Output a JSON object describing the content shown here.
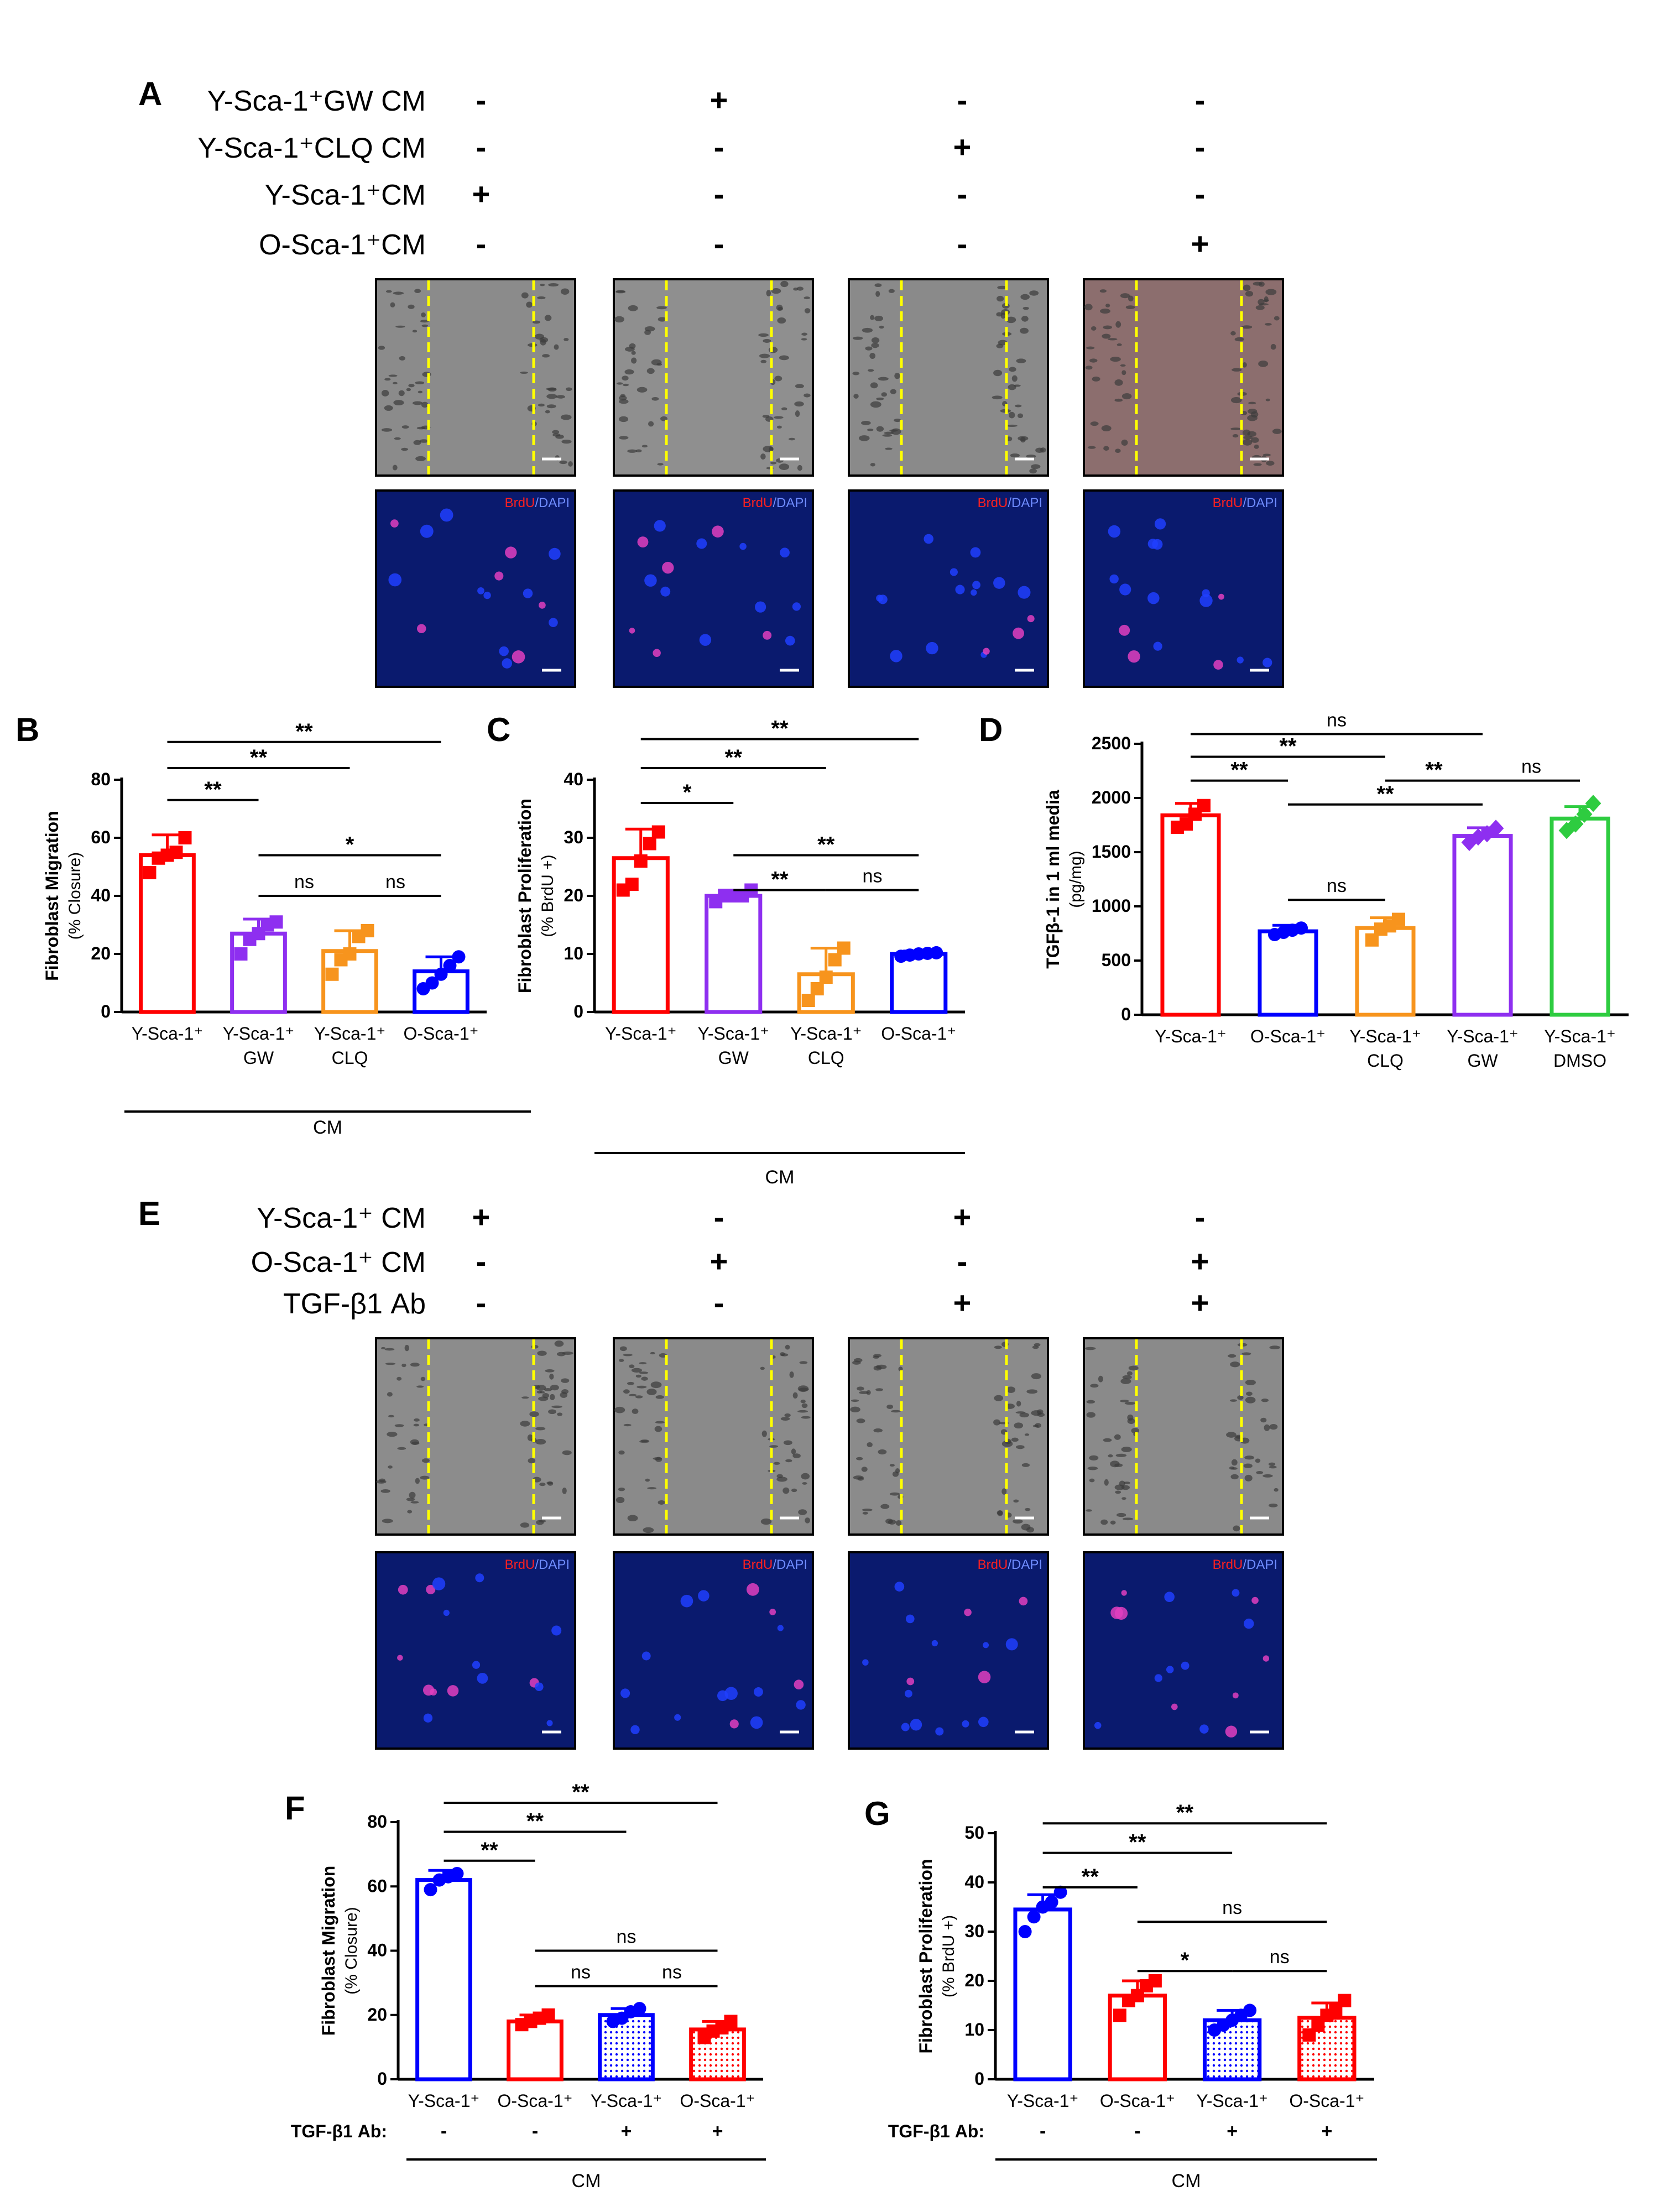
{
  "panel_a": {
    "letter": "A",
    "rows": [
      {
        "label": "Y-Sca-1⁺GW CM",
        "signs": [
          "-",
          "+",
          "-",
          "-"
        ]
      },
      {
        "label": "Y-Sca-1⁺CLQ CM",
        "signs": [
          "-",
          "-",
          "+",
          "-"
        ]
      },
      {
        "label": "Y-Sca-1⁺CM",
        "signs": [
          "+",
          "-",
          "-",
          "-"
        ]
      },
      {
        "label": "O-Sca-1⁺CM",
        "signs": [
          "-",
          "-",
          "-",
          "+"
        ]
      }
    ],
    "brdu_label": "BrdU",
    "dapi_label": "/DAPI",
    "micro_fill": [
      "#8b8b8b",
      "#8f8f8f",
      "#8a8a8a",
      "#8c6e6e"
    ]
  },
  "panel_e": {
    "letter": "E",
    "rows": [
      {
        "label": "Y-Sca-1⁺ CM",
        "signs": [
          "+",
          "-",
          "+",
          "-"
        ]
      },
      {
        "label": "O-Sca-1⁺ CM",
        "signs": [
          "-",
          "+",
          "-",
          "+"
        ]
      },
      {
        "label": "TGF-β1 Ab",
        "signs": [
          "-",
          "-",
          "+",
          "+"
        ]
      }
    ],
    "brdu_label": "BrdU",
    "dapi_label": "/DAPI",
    "micro_fill": [
      "#8c8c8c",
      "#8a8a8a",
      "#8b8b8b",
      "#8a8a8a"
    ]
  },
  "colors": {
    "red": "#ff0000",
    "purple": "#8e2ff0",
    "orange": "#f7941d",
    "blue": "#0000ff",
    "green": "#2ecc40",
    "yellow": "#ffff00",
    "fluor_bg": "#0a1a6e"
  },
  "chart_data": [
    {
      "panel": "B",
      "type": "bar",
      "ylabel": "Fibroblast Migration",
      "ylabel2": "(% Closure)",
      "ylim": [
        0,
        80
      ],
      "yticks": [
        0,
        20,
        40,
        60,
        80
      ],
      "categories": [
        [
          "Y-Sca-1⁺"
        ],
        [
          "Y-Sca-1⁺",
          "GW"
        ],
        [
          "Y-Sca-1⁺",
          "CLQ"
        ],
        [
          "O-Sca-1⁺"
        ]
      ],
      "values": [
        54,
        27,
        21,
        14
      ],
      "errors": [
        7,
        5,
        7,
        5
      ],
      "points": [
        [
          48,
          53,
          54,
          55,
          60
        ],
        [
          20,
          25,
          27,
          30,
          31
        ],
        [
          13,
          18,
          20,
          26,
          28
        ],
        [
          8,
          10,
          13,
          16,
          19
        ]
      ],
      "colors": [
        "#ff0000",
        "#8e2ff0",
        "#f7941d",
        "#0000ff"
      ],
      "markers": [
        "square",
        "square",
        "square",
        "circle"
      ],
      "group_label": "CM",
      "sig": [
        {
          "a": 0,
          "b": 3,
          "label": "**",
          "y": 93
        },
        {
          "a": 0,
          "b": 2,
          "label": "**",
          "y": 84
        },
        {
          "a": 0,
          "b": 1,
          "label": "**",
          "y": 73
        },
        {
          "a": 1,
          "b": 3,
          "label": "*",
          "y": 54
        },
        {
          "a": 1,
          "b": 2,
          "label": "ns",
          "y": 40
        },
        {
          "a": 2,
          "b": 3,
          "label": "ns",
          "y": 40
        }
      ]
    },
    {
      "panel": "C",
      "type": "bar",
      "ylabel": "Fibroblast Proliferation",
      "ylabel2": "(% BrdU +)",
      "ylim": [
        0,
        40
      ],
      "yticks": [
        0,
        10,
        20,
        30,
        40
      ],
      "categories": [
        [
          "Y-Sca-1⁺"
        ],
        [
          "Y-Sca-1⁺",
          "GW"
        ],
        [
          "Y-Sca-1⁺",
          "CLQ"
        ],
        [
          "O-Sca-1⁺"
        ]
      ],
      "values": [
        26.5,
        20,
        6.5,
        10
      ],
      "errors": [
        5,
        1,
        4.5,
        0.5
      ],
      "points": [
        [
          21,
          22,
          26,
          29,
          31
        ],
        [
          19,
          20,
          20,
          20,
          21
        ],
        [
          2,
          4,
          6,
          9,
          11
        ],
        [
          9.6,
          9.8,
          10,
          10.1,
          10.2
        ]
      ],
      "colors": [
        "#ff0000",
        "#8e2ff0",
        "#f7941d",
        "#0000ff"
      ],
      "markers": [
        "square",
        "square",
        "square",
        "circle"
      ],
      "group_label": "CM",
      "sig": [
        {
          "a": 0,
          "b": 3,
          "label": "**",
          "y": 47
        },
        {
          "a": 0,
          "b": 2,
          "label": "**",
          "y": 42
        },
        {
          "a": 0,
          "b": 1,
          "label": "*",
          "y": 36
        },
        {
          "a": 1,
          "b": 3,
          "label": "**",
          "y": 27
        },
        {
          "a": 1,
          "b": 2,
          "label": "**",
          "y": 21
        },
        {
          "a": 2,
          "b": 3,
          "label": "ns",
          "y": 21
        }
      ]
    },
    {
      "panel": "D",
      "type": "bar",
      "ylabel": "TGFβ-1 in 1 ml media",
      "ylabel2": "(pg/mg)",
      "ylim": [
        0,
        2500
      ],
      "yticks": [
        0,
        500,
        1000,
        1500,
        2000,
        2500
      ],
      "categories": [
        [
          "Y-Sca-1⁺"
        ],
        [
          "O-Sca-1⁺"
        ],
        [
          "Y-Sca-1⁺",
          "CLQ"
        ],
        [
          "Y-Sca-1⁺",
          "GW"
        ],
        [
          "Y-Sca-1⁺",
          "DMSO"
        ]
      ],
      "values": [
        1840,
        770,
        800,
        1650,
        1810
      ],
      "errors": [
        110,
        55,
        95,
        75,
        110
      ],
      "points": [
        [
          1730,
          1760,
          1850,
          1930
        ],
        [
          740,
          760,
          780,
          800
        ],
        [
          690,
          790,
          820,
          880
        ],
        [
          1590,
          1640,
          1670,
          1720
        ],
        [
          1700,
          1760,
          1850,
          1950
        ]
      ],
      "colors": [
        "#ff0000",
        "#0000ff",
        "#f7941d",
        "#8e2ff0",
        "#2ecc40"
      ],
      "markers": [
        "square",
        "circle",
        "square",
        "diamond",
        "diamond"
      ],
      "group_label": "",
      "sig": [
        {
          "a": 0,
          "b": 3,
          "label": "ns",
          "y": 2590
        },
        {
          "a": 0,
          "b": 2,
          "label": "**",
          "y": 2380
        },
        {
          "a": 0,
          "b": 1,
          "label": "**",
          "y": 2160
        },
        {
          "a": 2,
          "b": 3,
          "label": "**",
          "y": 2160
        },
        {
          "a": 3,
          "b": 4,
          "label": "ns",
          "y": 2160
        },
        {
          "a": 1,
          "b": 3,
          "label": "**",
          "y": 1940
        },
        {
          "a": 1,
          "b": 2,
          "label": "ns",
          "y": 1060
        }
      ]
    },
    {
      "panel": "F",
      "type": "bar",
      "ylabel": "Fibroblast Migration",
      "ylabel2": "(% Closure)",
      "ylim": [
        0,
        80
      ],
      "yticks": [
        0,
        20,
        40,
        60,
        80
      ],
      "categories": [
        [
          "Y-Sca-1⁺"
        ],
        [
          "O-Sca-1⁺"
        ],
        [
          "Y-Sca-1⁺"
        ],
        [
          "O-Sca-1⁺"
        ]
      ],
      "ab_label": "TGF-β1 Ab:",
      "ab_signs": [
        "-",
        "-",
        "+",
        "+"
      ],
      "values": [
        62,
        18,
        20,
        15.5
      ],
      "errors": [
        3,
        2,
        2,
        2.5
      ],
      "points": [
        [
          59,
          62,
          63,
          64
        ],
        [
          17,
          18,
          19,
          20
        ],
        [
          18,
          19,
          21,
          22
        ],
        [
          13,
          15,
          16,
          18
        ]
      ],
      "colors": [
        "#0000ff",
        "#ff0000",
        "#0000ff",
        "#ff0000"
      ],
      "markers": [
        "circle",
        "square",
        "circle",
        "square"
      ],
      "hatched": [
        false,
        false,
        true,
        true
      ],
      "group_label": "CM",
      "sig": [
        {
          "a": 0,
          "b": 3,
          "label": "**",
          "y": 86
        },
        {
          "a": 0,
          "b": 2,
          "label": "**",
          "y": 77
        },
        {
          "a": 0,
          "b": 1,
          "label": "**",
          "y": 68
        },
        {
          "a": 1,
          "b": 3,
          "label": "ns",
          "y": 40
        },
        {
          "a": 1,
          "b": 2,
          "label": "ns",
          "y": 29
        },
        {
          "a": 2,
          "b": 3,
          "label": "ns",
          "y": 29
        }
      ]
    },
    {
      "panel": "G",
      "type": "bar",
      "ylabel": "Fibroblast Proliferation",
      "ylabel2": "(% BrdU +)",
      "ylim": [
        0,
        50
      ],
      "yticks": [
        0,
        10,
        20,
        30,
        40,
        50
      ],
      "categories": [
        [
          "Y-Sca-1⁺"
        ],
        [
          "O-Sca-1⁺"
        ],
        [
          "Y-Sca-1⁺"
        ],
        [
          "O-Sca-1⁺"
        ]
      ],
      "ab_label": "TGF-β1 Ab:",
      "ab_signs": [
        "-",
        "-",
        "+",
        "+"
      ],
      "values": [
        34.5,
        17,
        12,
        12.5
      ],
      "errors": [
        3,
        3,
        2,
        3
      ],
      "points": [
        [
          30,
          33,
          35,
          36,
          38
        ],
        [
          13,
          16,
          17,
          19,
          20
        ],
        [
          10,
          11,
          12,
          13,
          14
        ],
        [
          9,
          11,
          13,
          14,
          16
        ]
      ],
      "colors": [
        "#0000ff",
        "#ff0000",
        "#0000ff",
        "#ff0000"
      ],
      "markers": [
        "circle",
        "square",
        "circle",
        "square"
      ],
      "hatched": [
        false,
        false,
        true,
        true
      ],
      "group_label": "CM",
      "sig": [
        {
          "a": 0,
          "b": 3,
          "label": "**",
          "y": 52
        },
        {
          "a": 0,
          "b": 2,
          "label": "**",
          "y": 46
        },
        {
          "a": 0,
          "b": 1,
          "label": "**",
          "y": 39
        },
        {
          "a": 1,
          "b": 3,
          "label": "ns",
          "y": 32
        },
        {
          "a": 1,
          "b": 2,
          "label": "*",
          "y": 22
        },
        {
          "a": 2,
          "b": 3,
          "label": "ns",
          "y": 22
        }
      ]
    }
  ]
}
